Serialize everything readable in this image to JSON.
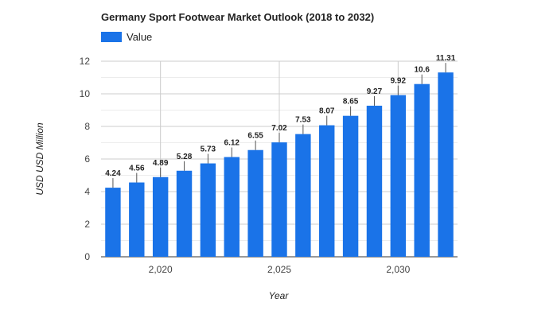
{
  "chart_data": {
    "type": "bar",
    "title": "Germany Sport Footwear Market Outlook (2018 to 2032)",
    "xlabel": "Year",
    "ylabel": "USD USD Million",
    "x": [
      2018,
      2019,
      2020,
      2021,
      2022,
      2023,
      2024,
      2025,
      2026,
      2027,
      2028,
      2029,
      2030,
      2031,
      2032
    ],
    "series": [
      {
        "name": "Value",
        "color": "#1a73e8",
        "values": [
          4.24,
          4.56,
          4.89,
          5.28,
          5.73,
          6.12,
          6.55,
          7.02,
          7.53,
          8.07,
          8.65,
          9.27,
          9.92,
          10.6,
          11.31
        ]
      }
    ],
    "data_labels": [
      "4.24",
      "4.56",
      "4.89",
      "5.28",
      "5.73",
      "6.12",
      "6.55",
      "7.02",
      "7.53",
      "8.07",
      "8.65",
      "9.27",
      "9.92",
      "10.6",
      "11.31"
    ],
    "ylim": [
      0,
      12
    ],
    "yticks": [
      0,
      2,
      4,
      6,
      8,
      10,
      12
    ],
    "ytick_labels": [
      "0",
      "2",
      "4",
      "6",
      "8",
      "10",
      "12"
    ],
    "xticks": [
      2020,
      2025,
      2030
    ],
    "xtick_labels": [
      "2,020",
      "2,025",
      "2,030"
    ],
    "grid": true,
    "legend_position": "top-left"
  }
}
